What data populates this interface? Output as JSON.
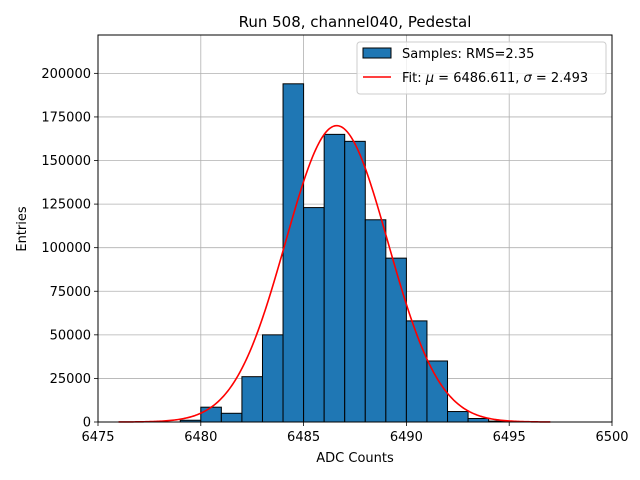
{
  "chart_data": {
    "type": "bar",
    "title": "Run 508, channel040, Pedestal",
    "xlabel": "ADC Counts",
    "ylabel": "Entries",
    "xlim": [
      6475,
      6500
    ],
    "ylim": [
      0,
      222000
    ],
    "xticks": [
      6475,
      6480,
      6485,
      6490,
      6495,
      6500
    ],
    "yticks": [
      0,
      25000,
      50000,
      75000,
      100000,
      125000,
      150000,
      175000,
      200000
    ],
    "grid": true,
    "legend_position": "top-right",
    "colors": {
      "bars": "#1f77b4",
      "bar_edge": "#000000",
      "fit": "#ff0000"
    },
    "series": [
      {
        "name": "Samples: RMS=2.35",
        "type": "bar",
        "bin_width": 1,
        "bin_starts": [
          6479,
          6480,
          6481,
          6482,
          6483,
          6484,
          6485,
          6486,
          6487,
          6488,
          6489,
          6490,
          6491,
          6492,
          6493,
          6494
        ],
        "values": [
          1000,
          8500,
          5000,
          26000,
          50000,
          194000,
          123000,
          165000,
          161000,
          116000,
          94000,
          58000,
          35000,
          6000,
          2000,
          500
        ]
      },
      {
        "name": "Fit: μ = 6486.611, σ = 2.493",
        "type": "line",
        "mu": 6486.611,
        "sigma": 2.493,
        "amplitude": 170000,
        "x_range": [
          6476,
          6497
        ]
      }
    ],
    "legend": {
      "entries": [
        {
          "label_prefix": "Samples: RMS=2.35"
        },
        {
          "label_prefix": "Fit: ",
          "mu_symbol": "μ",
          "mu_text": " = 6486.611, ",
          "sigma_symbol": "σ",
          "sigma_text": " = 2.493"
        }
      ]
    }
  }
}
